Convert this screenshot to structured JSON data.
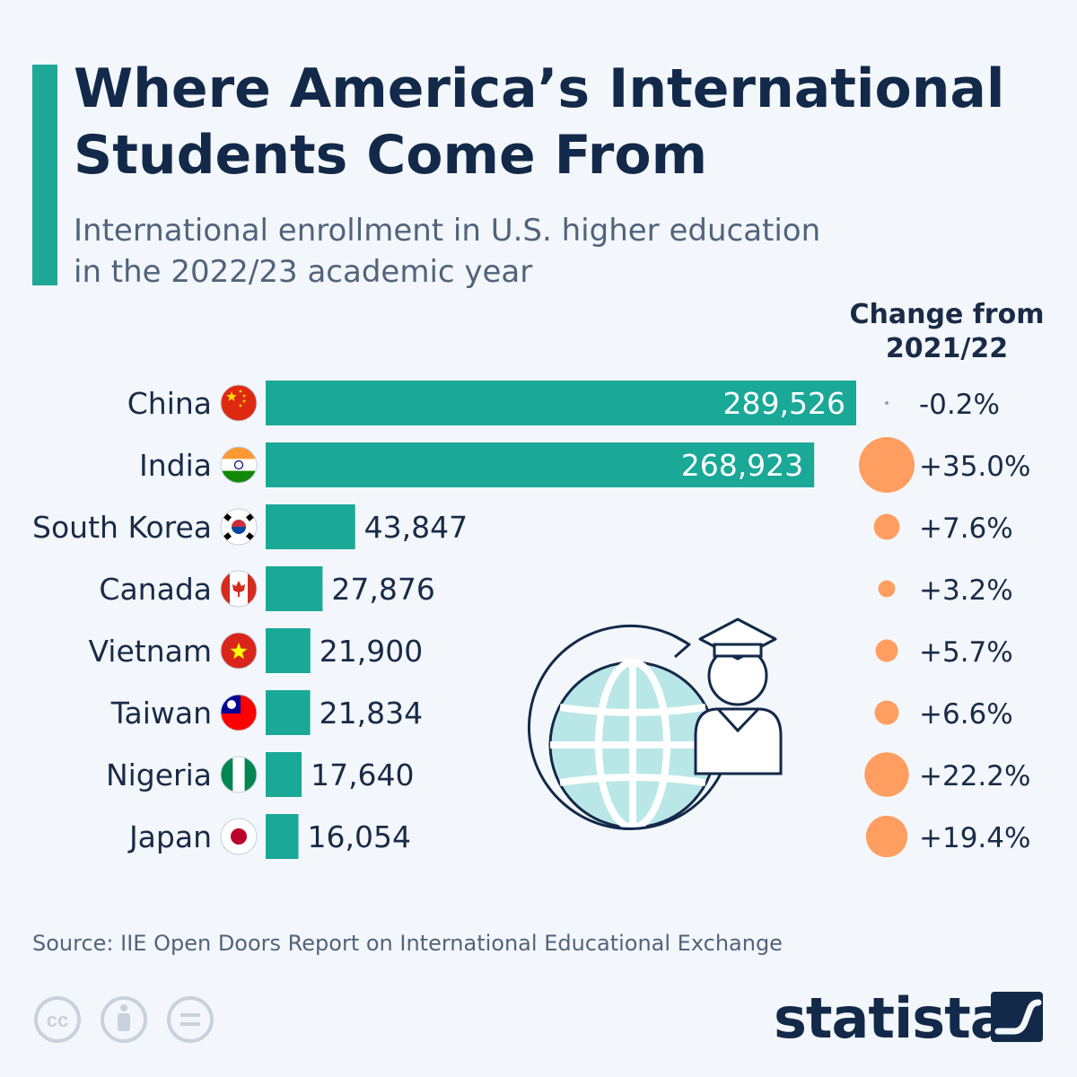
{
  "header": {
    "title_line1": "Where America’s International",
    "title_line2": "Students Come From",
    "subtitle_line1": "International enrollment in U.S. higher education",
    "subtitle_line2": "in the 2022/23 academic year",
    "change_heading_line1": "Change from",
    "change_heading_line2": "2021/22"
  },
  "colors": {
    "accent": "#1fa797",
    "bar": "#1aa897",
    "change_dot": "#ff9e60",
    "change_dot_small": "#8aa0b8",
    "title": "#13294a",
    "globe_fill": "#b9e7e7",
    "icon_stroke": "#13294a"
  },
  "chart_data": {
    "type": "bar",
    "orientation": "horizontal",
    "categories": [
      "China",
      "India",
      "South Korea",
      "Canada",
      "Vietnam",
      "Taiwan",
      "Nigeria",
      "Japan"
    ],
    "values": [
      289526,
      268923,
      43847,
      27876,
      21900,
      21834,
      17640,
      16054
    ],
    "value_labels": [
      "289,526",
      "268,923",
      "43,847",
      "27,876",
      "21,900",
      "21,834",
      "17,640",
      "16,054"
    ],
    "flag_icons": [
      "china-flag-icon",
      "india-flag-icon",
      "south-korea-flag-icon",
      "canada-flag-icon",
      "vietnam-flag-icon",
      "taiwan-flag-icon",
      "nigeria-flag-icon",
      "japan-flag-icon"
    ],
    "change_from_2021_22": [
      -0.2,
      35.0,
      7.6,
      3.2,
      5.7,
      6.6,
      22.2,
      19.4
    ],
    "change_labels": [
      "-0.2%",
      "+35.0%",
      "+7.6%",
      "+3.2%",
      "+5.7%",
      "+6.6%",
      "+22.2%",
      "+19.4%"
    ],
    "xlim": [
      0,
      289526
    ]
  },
  "illustration": {
    "icon": "globe-graduate-icon"
  },
  "footer": {
    "source": "Source: IIE Open Doors Report on International Educational Exchange",
    "license_icons": [
      "cc-icon",
      "attribution-icon",
      "no-derivatives-icon"
    ],
    "brand": "statista",
    "brand_logo": "statista-logo-icon"
  }
}
